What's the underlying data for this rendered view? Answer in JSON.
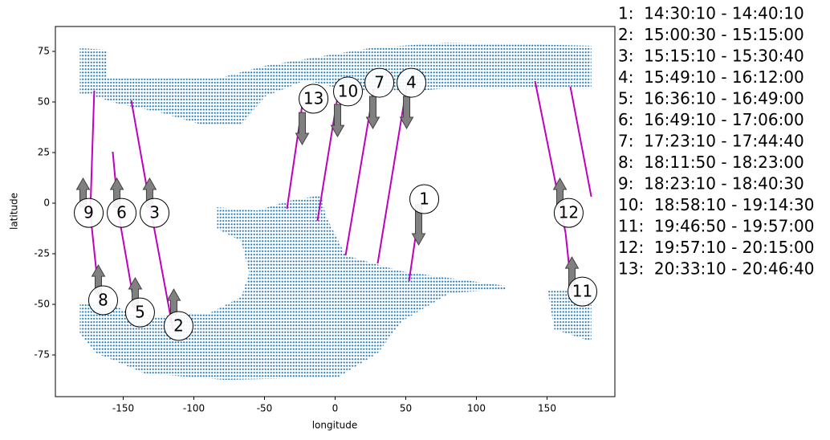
{
  "chart_data": {
    "type": "map",
    "xlabel": "longitude",
    "ylabel": "latitude",
    "xlim": [
      -198,
      198
    ],
    "ylim": [
      -95.6,
      87.3
    ],
    "xticks": [
      -150,
      -100,
      -50,
      0,
      50,
      100,
      150
    ],
    "yticks": [
      -75,
      -50,
      -25,
      0,
      25,
      50,
      75
    ],
    "land": {
      "color": "#1f77b4",
      "regions": [
        {
          "x": [
            -180.7,
            -161.4,
            -161.4,
            -83.5,
            -49.4,
            24.4,
            78.4,
            181.3,
            181.3,
            78.4,
            47.2,
            7.4,
            -21.0,
            -49.4,
            -66.5,
            -94.9,
            -123.3,
            -151.7,
            -174.4,
            -180.7
          ],
          "y": [
            76.6,
            75.8,
            61.5,
            61.5,
            67.9,
            76.6,
            79.4,
            77.8,
            56.7,
            56.7,
            54.8,
            56.0,
            60.7,
            52.8,
            38.9,
            38.9,
            44.8,
            48.8,
            53.6,
            53.6
          ]
        },
        {
          "x": [
            -180.7,
            -160.2,
            -137.5,
            -89.2,
            -66.5,
            -60.8,
            -66.5,
            -83.5,
            -83.5,
            -55.1,
            -32.4,
            -9.7,
            -6.8,
            7.4,
            47.2,
            121.0,
            121.0,
            81.3,
            47.2,
            30.1,
            1.7,
            -77.8,
            -134.7,
            -168.8,
            -180.7
          ],
          "y": [
            -49.6,
            -49.6,
            -56.3,
            -54.4,
            -46.4,
            -34.5,
            -18.7,
            -12.7,
            -2.0,
            -3.6,
            1.2,
            4.0,
            -6.0,
            -25.8,
            -33.7,
            -40.9,
            -42.5,
            -44.4,
            -58.3,
            -74.2,
            -86.1,
            -87.3,
            -84.1,
            -74.2,
            -64.3
          ]
        },
        {
          "x": [
            150.6,
            181.3,
            181.3,
            155.1
          ],
          "y": [
            -43.3,
            -43.3,
            -68.3,
            -62.3
          ]
        }
      ]
    },
    "tracks": {
      "color": "#c000c0",
      "series": [
        {
          "name": "1",
          "x": [
            60.2,
            52.3
          ],
          "y": [
            -0.8,
            -38.5
          ],
          "label_x": 63.1,
          "label_y": 2.0,
          "arrow": {
            "x": 59.1,
            "y": [
              -0.8,
              -20.6
            ]
          }
        },
        {
          "name": "2",
          "x": [
            -130.1,
            -114.8
          ],
          "y": [
            -4.8,
            -62.3
          ],
          "label_x": -110.8,
          "label_y": -60.7,
          "arrow": {
            "x": -114.2,
            "y": [
              -55.2,
              -42.5
            ]
          }
        },
        {
          "name": "3",
          "x": [
            -144.3,
            -130.1
          ],
          "y": [
            50.8,
            -4.8
          ],
          "label_x": -127.8,
          "label_y": -4.8,
          "arrow": {
            "x": -131.3,
            "y": [
              -2.0,
              12.3
            ]
          }
        },
        {
          "name": "4",
          "x": [
            50.6,
            30.1
          ],
          "y": [
            57.5,
            -29.8
          ],
          "label_x": 54.0,
          "label_y": 59.5,
          "arrow": {
            "x": 50.6,
            "y": [
              52.8,
              36.9
            ]
          }
        },
        {
          "name": "5",
          "x": [
            -153.4,
            -141.5
          ],
          "y": [
            -4.8,
            -52.4
          ],
          "label_x": -138.1,
          "label_y": -54.0,
          "arrow": {
            "x": -141.5,
            "y": [
              -51.2,
              -36.9
            ]
          }
        },
        {
          "name": "6",
          "x": [
            -157.4,
            -153.4
          ],
          "y": [
            25.4,
            -4.8
          ],
          "label_x": -151.1,
          "label_y": -4.8,
          "arrow": {
            "x": -154.5,
            "y": [
              -2.0,
              12.3
            ]
          }
        },
        {
          "name": "7",
          "x": [
            27.3,
            7.4
          ],
          "y": [
            56.3,
            -25.8
          ],
          "label_x": 31.3,
          "label_y": 59.5,
          "arrow": {
            "x": 26.7,
            "y": [
              52.8,
              36.9
            ]
          }
        },
        {
          "name": "8",
          "x": [
            -173.3,
            -166.5
          ],
          "y": [
            -4.8,
            -50.4
          ],
          "label_x": -164.2,
          "label_y": -48.0,
          "arrow": {
            "x": -167.6,
            "y": [
              -44.4,
              -30.6
            ]
          }
        },
        {
          "name": "9",
          "x": [
            -170.5,
            -173.3
          ],
          "y": [
            55.6,
            -4.8
          ],
          "label_x": -174.4,
          "label_y": -4.8,
          "arrow": {
            "x": -178.4,
            "y": [
              -2.0,
              12.3
            ]
          }
        },
        {
          "name": "10",
          "x": [
            1.7,
            -12.5
          ],
          "y": [
            52.4,
            -8.7
          ],
          "label_x": 9.1,
          "label_y": 55.2,
          "arrow": {
            "x": 1.7,
            "y": [
              48.8,
              32.9
            ]
          }
        },
        {
          "name": "11",
          "x": [
            166.5,
            181.3,
            null,
            163.1,
            167.6
          ],
          "y": [
            57.5,
            3.2,
            null,
            -14.7,
            -44.4
          ],
          "label_x": 175.0,
          "label_y": -43.7,
          "arrow": {
            "x": 167.6,
            "y": [
              -41.3,
              -26.6
            ]
          }
        },
        {
          "name": "12",
          "x": [
            141.5,
            163.1
          ],
          "y": [
            60.3,
            -14.7
          ],
          "label_x": 165.3,
          "label_y": -4.8,
          "arrow": {
            "x": 159.1,
            "y": [
              -2.0,
              12.3
            ]
          }
        },
        {
          "name": "13",
          "x": [
            -23.3,
            -34.1
          ],
          "y": [
            48.4,
            -2.8
          ],
          "label_x": -15.3,
          "label_y": 51.6,
          "arrow": {
            "x": -23.3,
            "y": [
              44.8,
              29.0
            ]
          }
        }
      ]
    },
    "legend": [
      "1:  14:30:10 - 14:40:10",
      "2:  15:00:30 - 15:15:00",
      "3:  15:15:10 - 15:30:40",
      "4:  15:49:10 - 16:12:00",
      "5:  16:36:10 - 16:49:00",
      "6:  16:49:10 - 17:06:00",
      "7:  17:23:10 - 17:44:40",
      "8:  18:11:50 - 18:23:00",
      "9:  18:23:10 - 18:40:30",
      "10:  18:58:10 - 19:14:30",
      "11:  19:46:50 - 19:57:00",
      "12:  19:57:10 - 20:15:00",
      "13:  20:33:10 - 20:46:40"
    ]
  }
}
